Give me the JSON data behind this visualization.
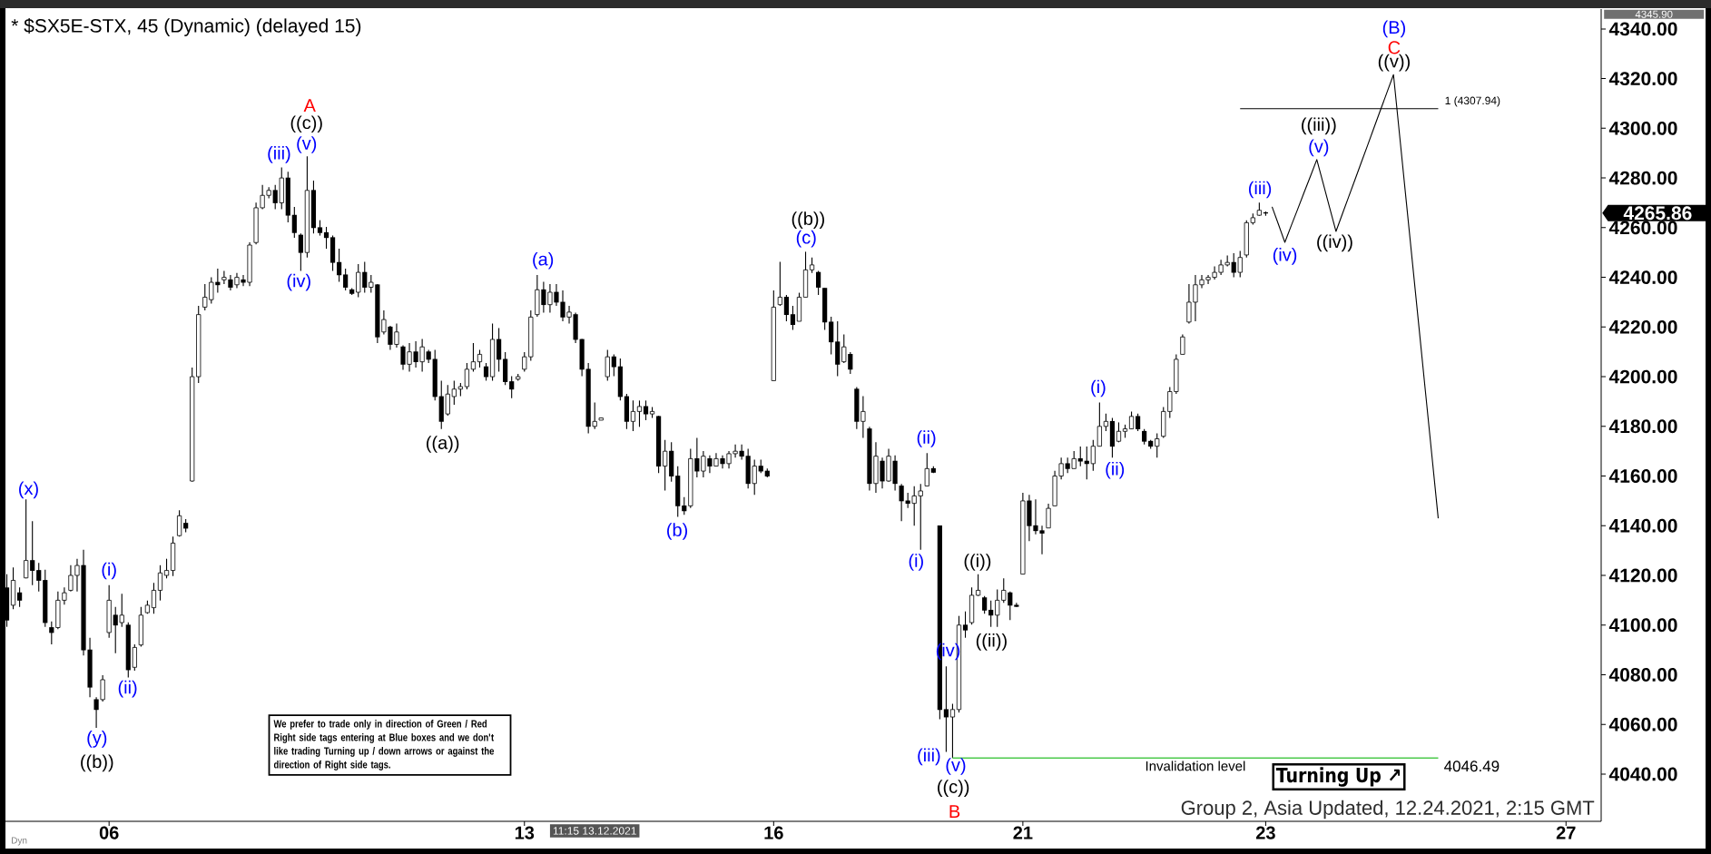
{
  "chart_data": {
    "type": "candlestick",
    "title": "* $SX5E-STX, 45 (Dynamic) (delayed 15)",
    "color": "#000000",
    "categories": [
      null,
      null,
      null,
      null,
      null,
      null,
      null,
      null,
      null,
      null,
      null,
      null,
      null,
      null,
      null,
      null,
      "06",
      null,
      null,
      null,
      null,
      null,
      null,
      null,
      null,
      null,
      null,
      null,
      null,
      null,
      null,
      null,
      null,
      null,
      null,
      null,
      null,
      null,
      null,
      null,
      null,
      null,
      null,
      null,
      null,
      null,
      null,
      null,
      null,
      null,
      null,
      null,
      null,
      null,
      null,
      null,
      null,
      null,
      null,
      null,
      null,
      null,
      null,
      null,
      null,
      null,
      null,
      null,
      null,
      null,
      null,
      null,
      null,
      null,
      null,
      null,
      null,
      null,
      null,
      null,
      null,
      "13",
      null,
      null,
      null,
      null,
      null,
      null,
      null,
      null,
      null,
      null,
      null,
      null,
      null,
      null,
      null,
      null,
      null,
      null,
      null,
      null,
      null,
      null,
      null,
      null,
      null,
      null,
      null,
      null,
      null,
      null,
      null,
      null,
      null,
      null,
      null,
      null,
      null,
      null,
      "16",
      null,
      null,
      null,
      null,
      null,
      null,
      null,
      null,
      null,
      null,
      null,
      null,
      null,
      null,
      null,
      null,
      null,
      null,
      null,
      null,
      null,
      null,
      null,
      null,
      null,
      null,
      null,
      null,
      null,
      null,
      null,
      null,
      null,
      null,
      null,
      null,
      null,
      null,
      "21",
      null,
      null,
      null,
      null,
      null,
      null,
      null,
      null,
      null,
      null,
      null,
      null,
      null,
      null,
      null,
      null,
      null,
      null,
      null,
      null,
      null,
      null,
      null,
      null,
      null,
      null,
      null,
      null,
      null,
      null,
      null,
      null,
      null,
      null,
      null,
      null,
      null,
      "23",
      null,
      null,
      null,
      null,
      null,
      null,
      null,
      null,
      null,
      null,
      null,
      null,
      null,
      null,
      null,
      null,
      null,
      null,
      null,
      null,
      null,
      null,
      null,
      null,
      null,
      null,
      null,
      null,
      null,
      null,
      null,
      null,
      null,
      null,
      null,
      null,
      null,
      null,
      null,
      null,
      null,
      null,
      null,
      null,
      null,
      null,
      "27",
      null,
      null,
      null,
      null,
      null
    ],
    "ohlc": [
      [
        4115,
        4120.5,
        4099.3,
        4102
      ],
      [
        4108,
        4123.2,
        4106.4,
        4118
      ],
      [
        4113,
        4115.2,
        4107.3,
        4110
      ],
      [
        4119,
        4150.6,
        4118.8,
        4126
      ],
      [
        4126,
        4141.8,
        4116.1,
        4122
      ],
      [
        4122,
        4125.0,
        4113.5,
        4118
      ],
      [
        4118,
        4122.3,
        4099.3,
        4101
      ],
      [
        4099,
        4101.5,
        4092.2,
        4097
      ],
      [
        4099,
        4113.5,
        4098.4,
        4110
      ],
      [
        4110,
        4115.2,
        4108.2,
        4113
      ],
      [
        4114,
        4124.1,
        4113.5,
        4120
      ],
      [
        4120,
        4126.7,
        4113.5,
        4124
      ],
      [
        4124,
        4130.3,
        4087.8,
        4090
      ],
      [
        4090,
        4094.9,
        4071.0,
        4075
      ],
      [
        4070,
        4071.0,
        4058.6,
        4066
      ],
      [
        4070,
        4079.8,
        4069.2,
        4078
      ],
      [
        4097,
        4116.1,
        4094.9,
        4110
      ],
      [
        4104,
        4107.3,
        4088.7,
        4100
      ],
      [
        4101,
        4112.6,
        4099.3,
        4104
      ],
      [
        4100,
        4101.1,
        4078.9,
        4082
      ],
      [
        4083,
        4092.2,
        4081.6,
        4091
      ],
      [
        4092,
        4107.3,
        4091.3,
        4104
      ],
      [
        4105,
        4109.9,
        4104.6,
        4108
      ],
      [
        4107,
        4117.0,
        4104.6,
        4114
      ],
      [
        4114,
        4124.1,
        4109.9,
        4121
      ],
      [
        4120,
        4126.7,
        4118.8,
        4122
      ],
      [
        4122,
        4135.6,
        4119.7,
        4133
      ],
      [
        4136,
        4146.2,
        4135.6,
        4144
      ],
      [
        4141,
        4142.7,
        4137.4,
        4139
      ],
      [
        4158,
        4203.7,
        4157.7,
        4200
      ],
      [
        4200,
        4228.5,
        4197.5,
        4225
      ],
      [
        4228,
        4237.3,
        4226.7,
        4232
      ],
      [
        4231,
        4240.0,
        4229.4,
        4238
      ],
      [
        4238,
        4243.5,
        4233.8,
        4237
      ],
      [
        4239,
        4242.6,
        4237.3,
        4240
      ],
      [
        4239,
        4240.9,
        4234.7,
        4236
      ],
      [
        4237,
        4241.8,
        4235.6,
        4240
      ],
      [
        4239,
        4240.9,
        4236.5,
        4238
      ],
      [
        4238,
        4254.1,
        4236.5,
        4253
      ],
      [
        4254,
        4270.1,
        4253.3,
        4268
      ],
      [
        4268,
        4277.2,
        4267.4,
        4273
      ],
      [
        4273,
        4276.3,
        4271.8,
        4275
      ],
      [
        4275,
        4277.2,
        4267.4,
        4270
      ],
      [
        4270,
        4284.2,
        4267.4,
        4280
      ],
      [
        4280,
        4282.5,
        4262.1,
        4265
      ],
      [
        4265,
        4268.3,
        4255.9,
        4258
      ],
      [
        4257,
        4257.7,
        4242.6,
        4250
      ],
      [
        4250,
        4288.7,
        4248.0,
        4275
      ],
      [
        4275,
        4278.9,
        4257.7,
        4260
      ],
      [
        4260,
        4263.0,
        4256.8,
        4258
      ],
      [
        4258,
        4260.3,
        4251.5,
        4256
      ],
      [
        4256,
        4256.8,
        4242.6,
        4246
      ],
      [
        4246,
        4251.5,
        4238.2,
        4241
      ],
      [
        4241,
        4243.5,
        4234.7,
        4236
      ],
      [
        4235,
        4235.6,
        4232.9,
        4233.5
      ],
      [
        4234,
        4245.3,
        4232.0,
        4242
      ],
      [
        4242,
        4246.2,
        4233.8,
        4236
      ],
      [
        4236,
        4240.9,
        4233.8,
        4238
      ],
      [
        4237,
        4237.3,
        4213.5,
        4216
      ],
      [
        4218,
        4226.7,
        4217.0,
        4223
      ],
      [
        4220,
        4220.5,
        4210.8,
        4213
      ],
      [
        4213,
        4221.4,
        4211.7,
        4218
      ],
      [
        4212,
        4212.6,
        4202.8,
        4205
      ],
      [
        4205,
        4213.5,
        4202.0,
        4210
      ],
      [
        4210,
        4214.3,
        4203.7,
        4206
      ],
      [
        4206,
        4215.2,
        4202.0,
        4212
      ],
      [
        4210,
        4210.8,
        4205.5,
        4207
      ],
      [
        4207,
        4210.8,
        4190.4,
        4192
      ],
      [
        4192,
        4198.4,
        4178.9,
        4182
      ],
      [
        4185,
        4196.6,
        4184.3,
        4193
      ],
      [
        4192,
        4198.4,
        4188.7,
        4195
      ],
      [
        4195,
        4197.5,
        4192.2,
        4196
      ],
      [
        4196,
        4205.5,
        4194.9,
        4203
      ],
      [
        4203,
        4213.5,
        4202.0,
        4206
      ],
      [
        4206,
        4210.8,
        4203.7,
        4209
      ],
      [
        4204,
        4205.5,
        4198.4,
        4200
      ],
      [
        4200,
        4221.4,
        4198.4,
        4215
      ],
      [
        4215,
        4219.6,
        4202.0,
        4207
      ],
      [
        4207,
        4209.9,
        4196.6,
        4198
      ],
      [
        4198,
        4200.2,
        4191.3,
        4195
      ],
      [
        4199,
        4201.1,
        4198.4,
        4200
      ],
      [
        4203,
        4209.9,
        4202.0,
        4208
      ],
      [
        4208,
        4226.7,
        4206.4,
        4224
      ],
      [
        4225,
        4240.9,
        4224.1,
        4235
      ],
      [
        4235,
        4238.2,
        4225.8,
        4229
      ],
      [
        4229,
        4237.3,
        4225.8,
        4234
      ],
      [
        4234,
        4237.3,
        4228.5,
        4230
      ],
      [
        4230,
        4234.7,
        4222.3,
        4224
      ],
      [
        4224,
        4228.5,
        4221.4,
        4226
      ],
      [
        4225,
        4225.8,
        4213.5,
        4215
      ],
      [
        4215,
        4215.2,
        4200.2,
        4203
      ],
      [
        4203,
        4205.5,
        4177.2,
        4180
      ],
      [
        4180,
        4189.6,
        4178.9,
        4182
      ],
      [
        4182.5,
        4183.4,
        4182.5,
        4183.4
      ],
      [
        4200,
        4210.8,
        4198.4,
        4208
      ],
      [
        4208,
        4209.0,
        4200.2,
        4204
      ],
      [
        4204,
        4207.3,
        4190.4,
        4192
      ],
      [
        4192,
        4193.1,
        4178.9,
        4182
      ],
      [
        4182,
        4190.4,
        4178.1,
        4186
      ],
      [
        4186,
        4190.4,
        4179.8,
        4188
      ],
      [
        4188,
        4190.4,
        4182.5,
        4185
      ],
      [
        4185,
        4187.8,
        4183.4,
        4186
      ],
      [
        4184,
        4184.2,
        4161.2,
        4164
      ],
      [
        4164,
        4174.5,
        4154.2,
        4170
      ],
      [
        4170,
        4173.6,
        4157.7,
        4160
      ],
      [
        4160,
        4163.9,
        4143.6,
        4148
      ],
      [
        4148,
        4151.5,
        4144.4,
        4146
      ],
      [
        4148,
        4171.0,
        4147.1,
        4167
      ],
      [
        4167,
        4175.4,
        4159.5,
        4162
      ],
      [
        4162,
        4170.1,
        4159.5,
        4168
      ],
      [
        4167,
        4168.3,
        4161.2,
        4164
      ],
      [
        4164,
        4169.2,
        4163.9,
        4167
      ],
      [
        4167,
        4168.3,
        4163.0,
        4165
      ],
      [
        4165,
        4170.1,
        4163.0,
        4169
      ],
      [
        4169,
        4172.7,
        4167.4,
        4170
      ],
      [
        4170,
        4172.7,
        4166.6,
        4168
      ],
      [
        4168,
        4171.0,
        4155.0,
        4157
      ],
      [
        4157,
        4166.6,
        4152.4,
        4164
      ],
      [
        4164,
        4166.6,
        4161.2,
        4162
      ],
      [
        4162,
        4163.0,
        4159.5,
        4160
      ],
      [
        4198.4,
        4234.7,
        4198.4,
        4228
      ],
      [
        4229,
        4246.2,
        4228.5,
        4232
      ],
      [
        4232,
        4232.9,
        4222.3,
        4225
      ],
      [
        4225,
        4228.5,
        4218.8,
        4221
      ],
      [
        4222.3,
        4233.8,
        4222.3,
        4232
      ],
      [
        4232,
        4250.3,
        4232.0,
        4243
      ],
      [
        4243,
        4248.0,
        4241.8,
        4245
      ],
      [
        4242,
        4242.6,
        4232.9,
        4236
      ],
      [
        4235.6,
        4235.6,
        4218.8,
        4222
      ],
      [
        4222,
        4224.1,
        4209.0,
        4214
      ],
      [
        4214,
        4222.3,
        4200.2,
        4205
      ],
      [
        4206,
        4217.0,
        4205.5,
        4212
      ],
      [
        4209,
        4209.9,
        4201.1,
        4203
      ],
      [
        4195,
        4195.8,
        4178.9,
        4182
      ],
      [
        4182,
        4192.2,
        4175.4,
        4186
      ],
      [
        4179,
        4179.8,
        4154.2,
        4157
      ],
      [
        4157,
        4173.6,
        4153.3,
        4168
      ],
      [
        4166,
        4167.4,
        4155.0,
        4158
      ],
      [
        4158,
        4171.0,
        4157.7,
        4168
      ],
      [
        4166,
        4168.3,
        4154.2,
        4157
      ],
      [
        4156,
        4156.8,
        4141.8,
        4150
      ],
      [
        4150,
        4153.3,
        4147.1,
        4149
      ],
      [
        4149,
        4155.9,
        4140.0,
        4152
      ],
      [
        4152,
        4156.8,
        4130.3,
        4154
      ],
      [
        4156,
        4169.2,
        4155.9,
        4163
      ],
      [
        4163,
        4163.9,
        4161.2,
        4161.5
      ],
      [
        4140,
        4140.0,
        4062.1,
        4066
      ],
      [
        4066,
        4083.4,
        4048.9,
        4063
      ],
      [
        4063,
        4068.3,
        4046.49,
        4066
      ],
      [
        4066,
        4103.7,
        4064.8,
        4100
      ],
      [
        4100,
        4105.5,
        4094.9,
        4098
      ],
      [
        4101,
        4115.2,
        4100.2,
        4112
      ],
      [
        4112,
        4120.5,
        4111.7,
        4114
      ],
      [
        4111,
        4111.7,
        4104.6,
        4106
      ],
      [
        4106,
        4109.9,
        4099.3,
        4104
      ],
      [
        4104,
        4114.3,
        4099.3,
        4110
      ],
      [
        4110,
        4118.8,
        4109.0,
        4114
      ],
      [
        4113,
        4113.5,
        4102.0,
        4108
      ],
      [
        4108,
        4109.0,
        4107.3,
        4107.5
      ],
      [
        4120.5,
        4153.3,
        4120.5,
        4150
      ],
      [
        4150,
        4152.4,
        4133.8,
        4140
      ],
      [
        4140,
        4150.6,
        4136.5,
        4138
      ],
      [
        4138,
        4140.0,
        4128.5,
        4137
      ],
      [
        4139.1,
        4148.9,
        4139.1,
        4147
      ],
      [
        4148,
        4162.1,
        4148.0,
        4160
      ],
      [
        4160,
        4167.4,
        4158.6,
        4165
      ],
      [
        4165,
        4167.4,
        4161.2,
        4163
      ],
      [
        4163,
        4170.1,
        4163.0,
        4167
      ],
      [
        4167,
        4171.9,
        4163.9,
        4166
      ],
      [
        4166,
        4171.9,
        4158.6,
        4165
      ],
      [
        4165,
        4174.5,
        4162.1,
        4172
      ],
      [
        4172,
        4189.6,
        4171.9,
        4180
      ],
      [
        4180,
        4185.1,
        4178.1,
        4182
      ],
      [
        4182,
        4183.4,
        4167.4,
        4172
      ],
      [
        4174,
        4181.6,
        4173.6,
        4178
      ],
      [
        4178,
        4180.7,
        4175.4,
        4179
      ],
      [
        4179,
        4186.0,
        4178.9,
        4184
      ],
      [
        4184,
        4185.1,
        4178.1,
        4179
      ],
      [
        4178,
        4178.9,
        4172.7,
        4174
      ],
      [
        4174,
        4174.5,
        4171.0,
        4172
      ],
      [
        4172,
        4177.2,
        4167.4,
        4175
      ],
      [
        4176,
        4187.8,
        4175.4,
        4186
      ],
      [
        4186,
        4195.8,
        4183.4,
        4194
      ],
      [
        4194,
        4209.0,
        4193.1,
        4207
      ],
      [
        4209,
        4217.0,
        4209.0,
        4216
      ],
      [
        4222,
        4237.3,
        4221.4,
        4230
      ],
      [
        4230,
        4240.9,
        4222.3,
        4237
      ],
      [
        4237,
        4240.9,
        4235.6,
        4239
      ],
      [
        4239,
        4240.9,
        4237.3,
        4240
      ],
      [
        4240,
        4244.4,
        4239.1,
        4242
      ],
      [
        4242,
        4247.1,
        4240.9,
        4245
      ],
      [
        4245,
        4248.8,
        4244.4,
        4246
      ],
      [
        4246,
        4249.7,
        4240.0,
        4242
      ],
      [
        4242,
        4250.6,
        4240.0,
        4248
      ],
      [
        4249,
        4263.0,
        4248.0,
        4262
      ],
      [
        4262,
        4265.7,
        4261.2,
        4264
      ],
      [
        4265,
        4270.1,
        4264.8,
        4267
      ],
      [
        4266,
        4266.5,
        4264.8,
        4265.86
      ],
      null,
      null,
      null,
      null,
      null,
      null,
      null,
      null,
      null,
      null,
      null,
      null,
      null,
      null,
      null,
      null,
      null,
      null,
      null,
      null,
      null,
      null,
      null,
      null,
      null,
      null,
      null,
      null,
      null,
      null,
      null,
      null,
      null,
      null,
      null,
      null,
      null,
      null,
      null,
      null,
      null,
      null,
      null,
      null,
      null,
      null,
      null,
      null,
      null,
      null,
      null,
      null
    ],
    "series": [
      {
        "type": "line",
        "color": "#000000",
        "values": [
          null,
          null,
          null,
          null,
          null,
          null,
          null,
          null,
          null,
          null,
          null,
          null,
          null,
          null,
          null,
          null,
          null,
          null,
          null,
          null,
          null,
          null,
          null,
          null,
          null,
          null,
          null,
          null,
          null,
          null,
          null,
          null,
          null,
          null,
          null,
          null,
          null,
          null,
          null,
          null,
          null,
          null,
          null,
          null,
          null,
          null,
          null,
          null,
          null,
          null,
          null,
          null,
          null,
          null,
          null,
          null,
          null,
          null,
          null,
          null,
          null,
          null,
          null,
          null,
          null,
          null,
          null,
          null,
          null,
          null,
          null,
          null,
          null,
          null,
          null,
          null,
          null,
          null,
          null,
          null,
          null,
          null,
          null,
          null,
          null,
          null,
          null,
          null,
          null,
          null,
          null,
          null,
          null,
          null,
          null,
          null,
          null,
          null,
          null,
          null,
          null,
          null,
          null,
          null,
          null,
          null,
          null,
          null,
          null,
          null,
          null,
          null,
          null,
          null,
          null,
          null,
          null,
          null,
          null,
          null,
          null,
          null,
          null,
          null,
          null,
          null,
          null,
          null,
          null,
          null,
          null,
          null,
          null,
          null,
          null,
          null,
          null,
          null,
          null,
          null,
          null,
          null,
          null,
          null,
          null,
          null,
          null,
          null,
          null,
          null,
          null,
          null,
          null,
          null,
          null,
          null,
          null,
          null,
          null,
          null,
          null,
          null,
          null,
          null,
          null,
          null,
          null,
          null,
          null,
          null,
          null,
          null,
          null,
          null,
          null,
          null,
          null,
          null,
          null,
          null,
          null,
          null,
          null,
          null,
          null,
          null,
          null,
          null,
          null,
          null,
          null,
          null,
          null,
          null,
          null,
          null,
          null,
          null,
          4268.4,
          4261.3,
          4254.1,
          4260.8,
          4267.4,
          4274.1,
          4280.7,
          4287.4,
          4277.8,
          4268.1,
          4258.5,
          4265.5,
          4272.5,
          4279.5,
          4286.5,
          4293.5,
          4300.6,
          4307.6,
          4314.6,
          4321.6,
          4296.1,
          4270.6,
          4245.1,
          4219.6,
          4194.0,
          4168.5,
          4143.0,
          null,
          null,
          null,
          null,
          null,
          null,
          null,
          null,
          null,
          null,
          null,
          null,
          null,
          null,
          null,
          null,
          null,
          null,
          null,
          null,
          null,
          null,
          null,
          null,
          null
        ]
      }
    ],
    "ylim": [
      4021,
      4348
    ],
    "yticks": [
      {
        "value": 4040,
        "label": "4040.00"
      },
      {
        "value": 4060,
        "label": "4060.00"
      },
      {
        "value": 4080,
        "label": "4080.00"
      },
      {
        "value": 4100,
        "label": "4100.00"
      },
      {
        "value": 4120,
        "label": "4120.00"
      },
      {
        "value": 4140,
        "label": "4140.00"
      },
      {
        "value": 4160,
        "label": "4160.00"
      },
      {
        "value": 4180,
        "label": "4180.00"
      },
      {
        "value": 4200,
        "label": "4200.00"
      },
      {
        "value": 4220,
        "label": "4220.00"
      },
      {
        "value": 4240,
        "label": "4240.00"
      },
      {
        "value": 4260,
        "label": "4260.00"
      },
      {
        "value": 4280,
        "label": "4280.00"
      },
      {
        "value": 4300,
        "label": "4300.00"
      },
      {
        "value": 4320,
        "label": "4320.00"
      },
      {
        "value": 4340,
        "label": "4340.00"
      }
    ],
    "ref_lines": [
      {
        "axis": "y",
        "value": 4307.94,
        "label": "1 (4307.94)",
        "color": "#000000"
      },
      {
        "axis": "y",
        "value": 4046.49,
        "label": "Invalidation level",
        "color": "#4cc94c"
      }
    ],
    "annotations": [
      "(x)",
      "(i)",
      "(ii)",
      "(y)",
      "((b))",
      "(iii)",
      "(iv)",
      "(v)",
      "((c))",
      "A",
      "((a))",
      "(a)",
      "(b)",
      "((b))",
      "(c)",
      "(i)",
      "(ii)",
      "(iii)",
      "(iv)",
      "(v)",
      "((c))",
      "B",
      "((i))",
      "((ii))",
      "(i)",
      "(ii)",
      "(iii)",
      "(iv)",
      "(v)",
      "((iii))",
      "((iv))",
      "(B)",
      "C",
      "((v))",
      "4345.90",
      "4265.86",
      "4046.49",
      "11:15 13.12.2021",
      "We prefer to trade only in direction of Green / Red Right side tags entering at Blue boxes and we don't like trading Turning up / down arrows or against the direction of Right side tags.",
      "Turning Up ↗",
      "Group 2, Asia Updated, 12.24.2021, 2:15 GMT",
      "Dyn"
    ]
  }
}
